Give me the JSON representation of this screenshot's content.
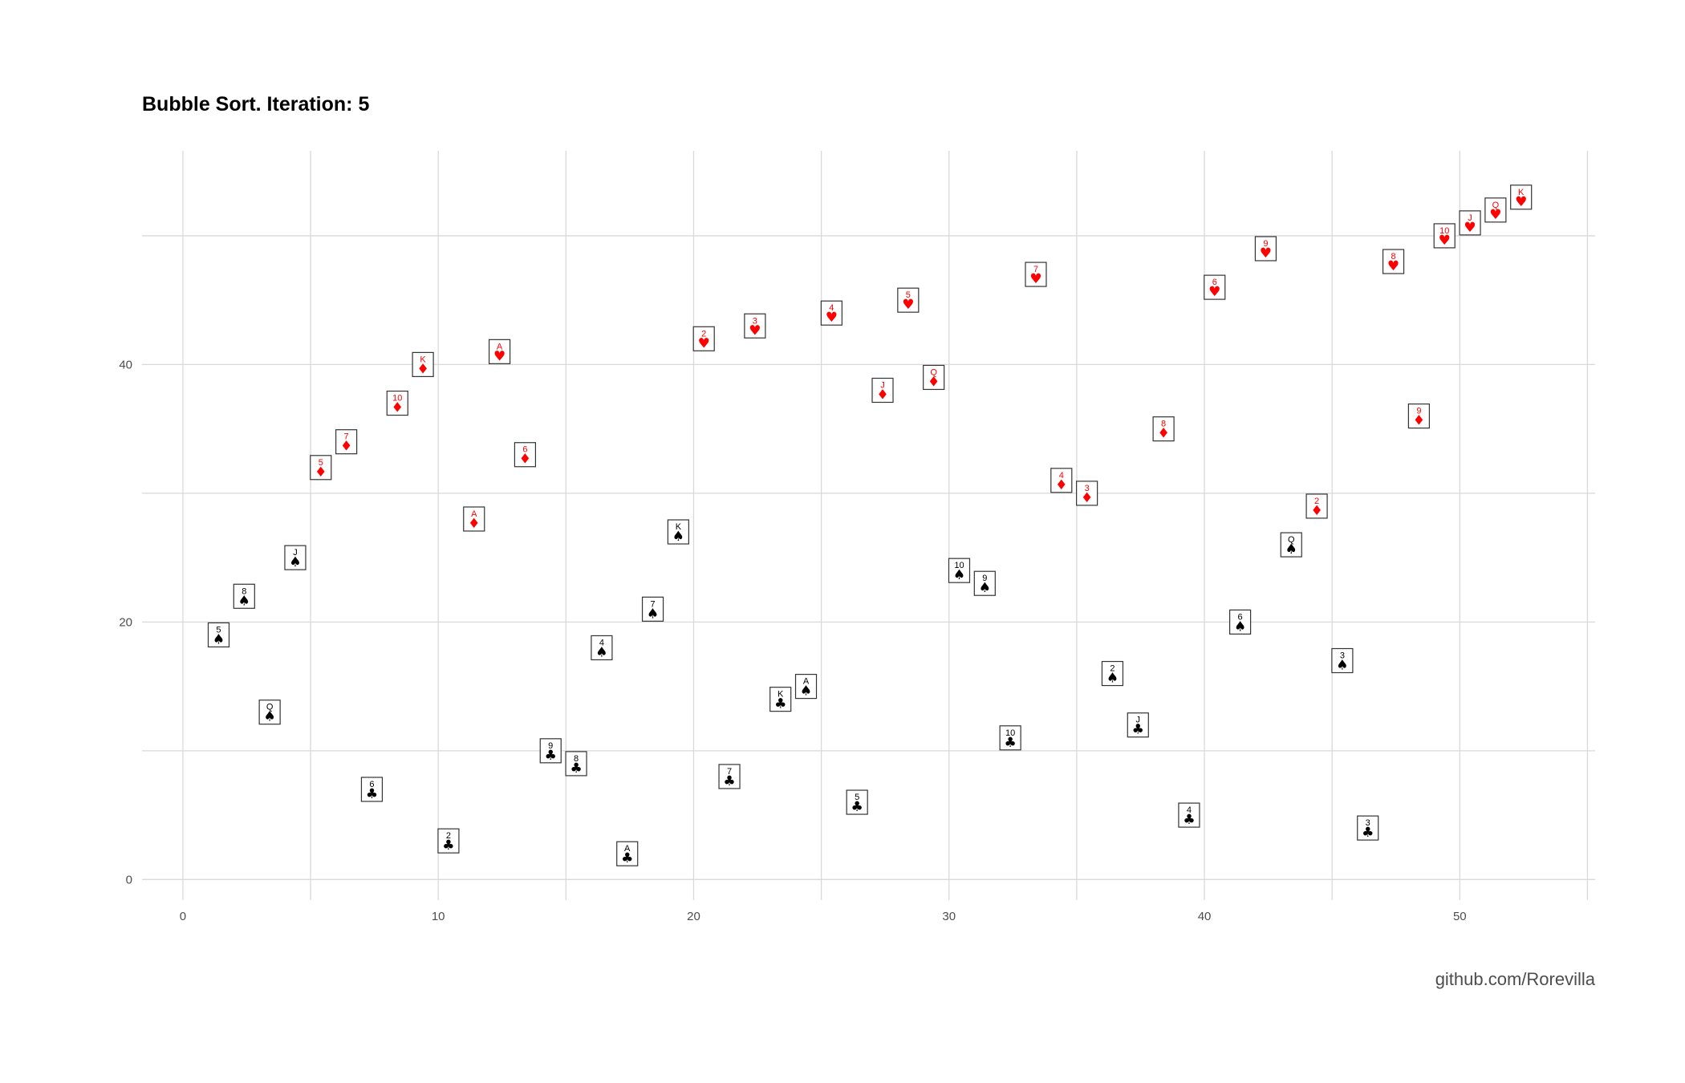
{
  "title": "Bubble Sort. Iteration: 5",
  "caption": "github.com/Rorevilla",
  "colors": {
    "black_suit": "#000000",
    "red_suit": "#ff0000",
    "grid": "#d9d9d9",
    "card_border": "#333333"
  },
  "icons": {
    "spades": "spade-icon",
    "clubs": "club-icon",
    "diamonds": "diamond-icon",
    "hearts": "heart-icon"
  },
  "chart_data": {
    "type": "scatter",
    "title": "Bubble Sort. Iteration: 5",
    "xlabel": "",
    "ylabel": "",
    "xlim": [
      -1.6,
      55.3
    ],
    "ylim": [
      -1.6,
      56.6
    ],
    "x_ticks": [
      0,
      10,
      20,
      30,
      40,
      50
    ],
    "y_ticks": [
      0,
      20,
      40
    ],
    "grid": true,
    "points": [
      {
        "x": 1.4,
        "y": 19,
        "rank": "5",
        "suit": "spades"
      },
      {
        "x": 2.4,
        "y": 22,
        "rank": "8",
        "suit": "spades"
      },
      {
        "x": 3.4,
        "y": 13,
        "rank": "Q",
        "suit": "spades"
      },
      {
        "x": 4.4,
        "y": 25,
        "rank": "J",
        "suit": "spades"
      },
      {
        "x": 5.4,
        "y": 32,
        "rank": "5",
        "suit": "diamonds"
      },
      {
        "x": 6.4,
        "y": 34,
        "rank": "7",
        "suit": "diamonds"
      },
      {
        "x": 7.4,
        "y": 7,
        "rank": "6",
        "suit": "clubs"
      },
      {
        "x": 8.4,
        "y": 37,
        "rank": "10",
        "suit": "diamonds"
      },
      {
        "x": 9.4,
        "y": 40,
        "rank": "K",
        "suit": "diamonds"
      },
      {
        "x": 10.4,
        "y": 3,
        "rank": "2",
        "suit": "clubs"
      },
      {
        "x": 11.4,
        "y": 28,
        "rank": "A",
        "suit": "diamonds"
      },
      {
        "x": 12.4,
        "y": 41,
        "rank": "A",
        "suit": "hearts"
      },
      {
        "x": 13.4,
        "y": 33,
        "rank": "6",
        "suit": "diamonds"
      },
      {
        "x": 14.4,
        "y": 10,
        "rank": "9",
        "suit": "clubs"
      },
      {
        "x": 15.4,
        "y": 9,
        "rank": "8",
        "suit": "clubs"
      },
      {
        "x": 16.4,
        "y": 18,
        "rank": "4",
        "suit": "spades"
      },
      {
        "x": 17.4,
        "y": 2,
        "rank": "A",
        "suit": "clubs"
      },
      {
        "x": 18.4,
        "y": 21,
        "rank": "7",
        "suit": "spades"
      },
      {
        "x": 19.4,
        "y": 27,
        "rank": "K",
        "suit": "spades"
      },
      {
        "x": 20.4,
        "y": 42,
        "rank": "2",
        "suit": "hearts"
      },
      {
        "x": 21.4,
        "y": 8,
        "rank": "7",
        "suit": "clubs"
      },
      {
        "x": 22.4,
        "y": 43,
        "rank": "3",
        "suit": "hearts"
      },
      {
        "x": 23.4,
        "y": 14,
        "rank": "K",
        "suit": "clubs"
      },
      {
        "x": 24.4,
        "y": 15,
        "rank": "A",
        "suit": "spades"
      },
      {
        "x": 25.4,
        "y": 44,
        "rank": "4",
        "suit": "hearts"
      },
      {
        "x": 26.4,
        "y": 6,
        "rank": "5",
        "suit": "clubs"
      },
      {
        "x": 27.4,
        "y": 38,
        "rank": "J",
        "suit": "diamonds"
      },
      {
        "x": 28.4,
        "y": 45,
        "rank": "5",
        "suit": "hearts"
      },
      {
        "x": 29.4,
        "y": 39,
        "rank": "Q",
        "suit": "diamonds"
      },
      {
        "x": 30.4,
        "y": 24,
        "rank": "10",
        "suit": "spades"
      },
      {
        "x": 31.4,
        "y": 23,
        "rank": "9",
        "suit": "spades"
      },
      {
        "x": 32.4,
        "y": 11,
        "rank": "10",
        "suit": "clubs"
      },
      {
        "x": 33.4,
        "y": 47,
        "rank": "7",
        "suit": "hearts"
      },
      {
        "x": 34.4,
        "y": 31,
        "rank": "4",
        "suit": "diamonds"
      },
      {
        "x": 35.4,
        "y": 30,
        "rank": "3",
        "suit": "diamonds"
      },
      {
        "x": 36.4,
        "y": 16,
        "rank": "2",
        "suit": "spades"
      },
      {
        "x": 37.4,
        "y": 12,
        "rank": "J",
        "suit": "clubs"
      },
      {
        "x": 38.4,
        "y": 35,
        "rank": "8",
        "suit": "diamonds"
      },
      {
        "x": 39.4,
        "y": 5,
        "rank": "4",
        "suit": "clubs"
      },
      {
        "x": 40.4,
        "y": 46,
        "rank": "6",
        "suit": "hearts"
      },
      {
        "x": 41.4,
        "y": 20,
        "rank": "6",
        "suit": "spades"
      },
      {
        "x": 42.4,
        "y": 49,
        "rank": "9",
        "suit": "hearts"
      },
      {
        "x": 43.4,
        "y": 26,
        "rank": "Q",
        "suit": "spades"
      },
      {
        "x": 44.4,
        "y": 29,
        "rank": "2",
        "suit": "diamonds"
      },
      {
        "x": 45.4,
        "y": 17,
        "rank": "3",
        "suit": "spades"
      },
      {
        "x": 46.4,
        "y": 4,
        "rank": "3",
        "suit": "clubs"
      },
      {
        "x": 47.4,
        "y": 48,
        "rank": "8",
        "suit": "hearts"
      },
      {
        "x": 48.4,
        "y": 36,
        "rank": "9",
        "suit": "diamonds"
      },
      {
        "x": 49.4,
        "y": 50,
        "rank": "10",
        "suit": "hearts"
      },
      {
        "x": 50.4,
        "y": 51,
        "rank": "J",
        "suit": "hearts"
      },
      {
        "x": 51.4,
        "y": 52,
        "rank": "Q",
        "suit": "hearts"
      },
      {
        "x": 52.4,
        "y": 53,
        "rank": "K",
        "suit": "hearts"
      }
    ]
  }
}
